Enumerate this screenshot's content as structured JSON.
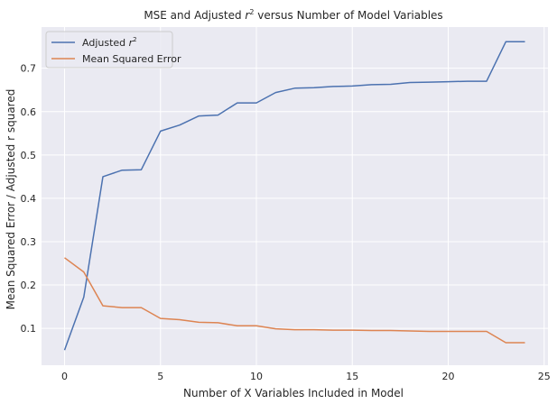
{
  "chart_data": {
    "type": "line",
    "title": "MSE and Adjusted r² versus Number of Model Variables",
    "title_parts": {
      "before": "MSE and Adjusted ",
      "var": "r",
      "sup": "2",
      "after": " versus Number of Model Variables"
    },
    "xlabel": "Number of X Variables Included in Model",
    "ylabel": "Mean Squared Error / Adjusted r squared",
    "xlim": [
      -1.2,
      25.2
    ],
    "ylim": [
      0.015,
      0.795
    ],
    "xticks": [
      0,
      5,
      10,
      15,
      20,
      25
    ],
    "yticks": [
      0.1,
      0.2,
      0.3,
      0.4,
      0.5,
      0.6,
      0.7
    ],
    "grid": true,
    "legend_position": "top-left",
    "x": [
      0,
      1,
      2,
      3,
      4,
      5,
      6,
      7,
      8,
      9,
      10,
      11,
      12,
      13,
      14,
      15,
      16,
      17,
      18,
      19,
      20,
      21,
      22,
      23,
      24
    ],
    "series": [
      {
        "name": "Adjusted r²",
        "label_parts": {
          "before": "Adjusted ",
          "var": "r",
          "sup": "2"
        },
        "color": "#4c72b0",
        "values": [
          0.05,
          0.172,
          0.45,
          0.465,
          0.466,
          0.555,
          0.569,
          0.59,
          0.592,
          0.62,
          0.62,
          0.644,
          0.654,
          0.655,
          0.658,
          0.659,
          0.662,
          0.663,
          0.667,
          0.668,
          0.669,
          0.67,
          0.67,
          0.761,
          0.761
        ]
      },
      {
        "name": "Mean Squared Error",
        "color": "#dd8452",
        "values": [
          0.263,
          0.23,
          0.152,
          0.148,
          0.148,
          0.123,
          0.12,
          0.114,
          0.113,
          0.106,
          0.106,
          0.099,
          0.097,
          0.097,
          0.096,
          0.096,
          0.095,
          0.095,
          0.094,
          0.093,
          0.093,
          0.093,
          0.093,
          0.067,
          0.067
        ]
      }
    ]
  },
  "colors": {
    "plot_background": "#eaeaf2",
    "grid": "#ffffff",
    "text": "#262626"
  }
}
